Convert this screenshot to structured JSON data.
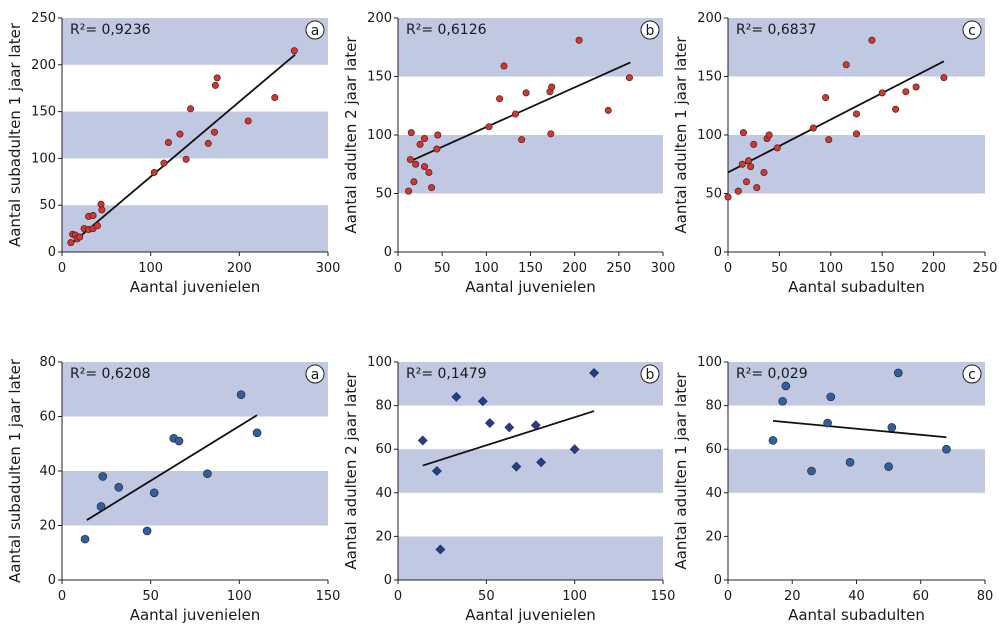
{
  "chart_data": [
    {
      "type": "scatter",
      "panel": "a",
      "r2": "R²= 0,9236",
      "xlabel": "Aantal juvenielen",
      "ylabel": "Aantal subadulten 1 jaar later",
      "xlim": [
        0,
        300
      ],
      "ylim": [
        0,
        250
      ],
      "xticks": [
        0,
        100,
        200,
        300
      ],
      "yticks": [
        0,
        50,
        100,
        150,
        200,
        250
      ],
      "bands": [
        [
          0,
          50
        ],
        [
          100,
          150
        ],
        [
          200,
          250
        ]
      ],
      "marker": "circle",
      "color": "#d9342b",
      "trend": {
        "x1": 12,
        "y1": 10,
        "x2": 263,
        "y2": 211
      },
      "points": [
        [
          10,
          10
        ],
        [
          12,
          19
        ],
        [
          15,
          18
        ],
        [
          17,
          14
        ],
        [
          20,
          16
        ],
        [
          25,
          25
        ],
        [
          30,
          24
        ],
        [
          30,
          38
        ],
        [
          35,
          25
        ],
        [
          35,
          39
        ],
        [
          40,
          28
        ],
        [
          44,
          51
        ],
        [
          45,
          45
        ],
        [
          104,
          85
        ],
        [
          115,
          95
        ],
        [
          120,
          117
        ],
        [
          133,
          126
        ],
        [
          140,
          99
        ],
        [
          145,
          153
        ],
        [
          165,
          116
        ],
        [
          172,
          128
        ],
        [
          173,
          178
        ],
        [
          175,
          186
        ],
        [
          210,
          140
        ],
        [
          240,
          165
        ],
        [
          262,
          215
        ]
      ]
    },
    {
      "type": "scatter",
      "panel": "b",
      "r2": "R²= 0,6126",
      "xlabel": "Aantal juvenielen",
      "ylabel": "Aantal adulten 2 jaar later",
      "xlim": [
        0,
        300
      ],
      "ylim": [
        0,
        200
      ],
      "xticks": [
        0,
        50,
        100,
        150,
        200,
        250,
        300
      ],
      "yticks": [
        0,
        50,
        100,
        150,
        200
      ],
      "bands": [
        [
          50,
          100
        ],
        [
          150,
          200
        ]
      ],
      "marker": "circle",
      "color": "#d9342b",
      "trend": {
        "x1": 12,
        "y1": 77,
        "x2": 263,
        "y2": 162
      },
      "points": [
        [
          12,
          52
        ],
        [
          14,
          79
        ],
        [
          15,
          102
        ],
        [
          18,
          60
        ],
        [
          20,
          75
        ],
        [
          25,
          92
        ],
        [
          30,
          97
        ],
        [
          30,
          73
        ],
        [
          35,
          68
        ],
        [
          38,
          55
        ],
        [
          44,
          88
        ],
        [
          45,
          100
        ],
        [
          103,
          107
        ],
        [
          115,
          131
        ],
        [
          120,
          159
        ],
        [
          133,
          118
        ],
        [
          140,
          96
        ],
        [
          145,
          136
        ],
        [
          172,
          137
        ],
        [
          173,
          101
        ],
        [
          174,
          141
        ],
        [
          205,
          181
        ],
        [
          238,
          121
        ],
        [
          262,
          149
        ]
      ]
    },
    {
      "type": "scatter",
      "panel": "c",
      "r2": "R²= 0,6837",
      "xlabel": "Aantal subadulten",
      "ylabel": "Aantal adulten 1 jaar later",
      "xlim": [
        0,
        250
      ],
      "ylim": [
        0,
        200
      ],
      "xticks": [
        0,
        50,
        100,
        150,
        200,
        250
      ],
      "yticks": [
        0,
        50,
        100,
        150,
        200
      ],
      "bands": [
        [
          50,
          100
        ],
        [
          150,
          200
        ]
      ],
      "marker": "circle",
      "color": "#d9342b",
      "trend": {
        "x1": 0,
        "y1": 68,
        "x2": 210,
        "y2": 163
      },
      "points": [
        [
          0,
          47
        ],
        [
          10,
          52
        ],
        [
          14,
          75
        ],
        [
          15,
          102
        ],
        [
          18,
          60
        ],
        [
          20,
          78
        ],
        [
          22,
          73
        ],
        [
          25,
          92
        ],
        [
          28,
          55
        ],
        [
          35,
          68
        ],
        [
          38,
          97
        ],
        [
          40,
          100
        ],
        [
          48,
          89
        ],
        [
          83,
          106
        ],
        [
          95,
          132
        ],
        [
          98,
          96
        ],
        [
          115,
          160
        ],
        [
          125,
          118
        ],
        [
          125,
          101
        ],
        [
          140,
          181
        ],
        [
          150,
          136
        ],
        [
          163,
          122
        ],
        [
          173,
          137
        ],
        [
          183,
          141
        ],
        [
          210,
          149
        ]
      ]
    },
    {
      "type": "scatter",
      "panel": "a",
      "r2": "R²= 0,6208",
      "xlabel": "Aantal juvenielen",
      "ylabel": "Aantal subadulten 1 jaar later",
      "xlim": [
        0,
        150
      ],
      "ylim": [
        0,
        80
      ],
      "xticks": [
        0,
        50,
        100,
        150
      ],
      "yticks": [
        0,
        20,
        40,
        60,
        80
      ],
      "bands": [
        [
          20,
          40
        ],
        [
          60,
          80
        ]
      ],
      "marker": "circle",
      "color": "#2f5fa0",
      "trend": {
        "x1": 14,
        "y1": 22,
        "x2": 110,
        "y2": 60.5
      },
      "points": [
        [
          13,
          15
        ],
        [
          22,
          27
        ],
        [
          23,
          38
        ],
        [
          32,
          34
        ],
        [
          48,
          18
        ],
        [
          52,
          32
        ],
        [
          63,
          52
        ],
        [
          66,
          51
        ],
        [
          82,
          39
        ],
        [
          101,
          68
        ],
        [
          110,
          54
        ]
      ]
    },
    {
      "type": "scatter",
      "panel": "b",
      "r2": "R²= 0,1479",
      "xlabel": "Aantal juvenielen",
      "ylabel": "Aantal adulten 2 jaar later",
      "xlim": [
        0,
        150
      ],
      "ylim": [
        0,
        100
      ],
      "xticks": [
        0,
        50,
        100,
        150
      ],
      "yticks": [
        0,
        20,
        40,
        60,
        80,
        100
      ],
      "bands": [
        [
          0,
          20
        ],
        [
          40,
          60
        ],
        [
          80,
          100
        ]
      ],
      "marker": "diamond",
      "color": "#253e86",
      "trend": {
        "x1": 14,
        "y1": 52.5,
        "x2": 111,
        "y2": 77.5
      },
      "points": [
        [
          14,
          64
        ],
        [
          22,
          50
        ],
        [
          24,
          14
        ],
        [
          33,
          84
        ],
        [
          48,
          82
        ],
        [
          52,
          72
        ],
        [
          63,
          70
        ],
        [
          67,
          52
        ],
        [
          78,
          71
        ],
        [
          81,
          54
        ],
        [
          100,
          60
        ],
        [
          111,
          95
        ]
      ]
    },
    {
      "type": "scatter",
      "panel": "c",
      "r2": "R²= 0,029",
      "xlabel": "Aantal subadulten",
      "ylabel": "Aantal adulten 1 jaar later",
      "xlim": [
        0,
        80
      ],
      "ylim": [
        0,
        100
      ],
      "xticks": [
        0,
        20,
        40,
        60,
        80
      ],
      "yticks": [
        0,
        20,
        40,
        60,
        80,
        100
      ],
      "bands": [
        [
          40,
          60
        ],
        [
          80,
          100
        ]
      ],
      "marker": "circle",
      "color": "#2f5fa0",
      "trend": {
        "x1": 14,
        "y1": 73,
        "x2": 68,
        "y2": 65.5
      },
      "points": [
        [
          14,
          64
        ],
        [
          17,
          82
        ],
        [
          18,
          89
        ],
        [
          26,
          50
        ],
        [
          31,
          72
        ],
        [
          32,
          84
        ],
        [
          38,
          54
        ],
        [
          50,
          52
        ],
        [
          51,
          70
        ],
        [
          53,
          95
        ],
        [
          68,
          60
        ]
      ]
    }
  ]
}
